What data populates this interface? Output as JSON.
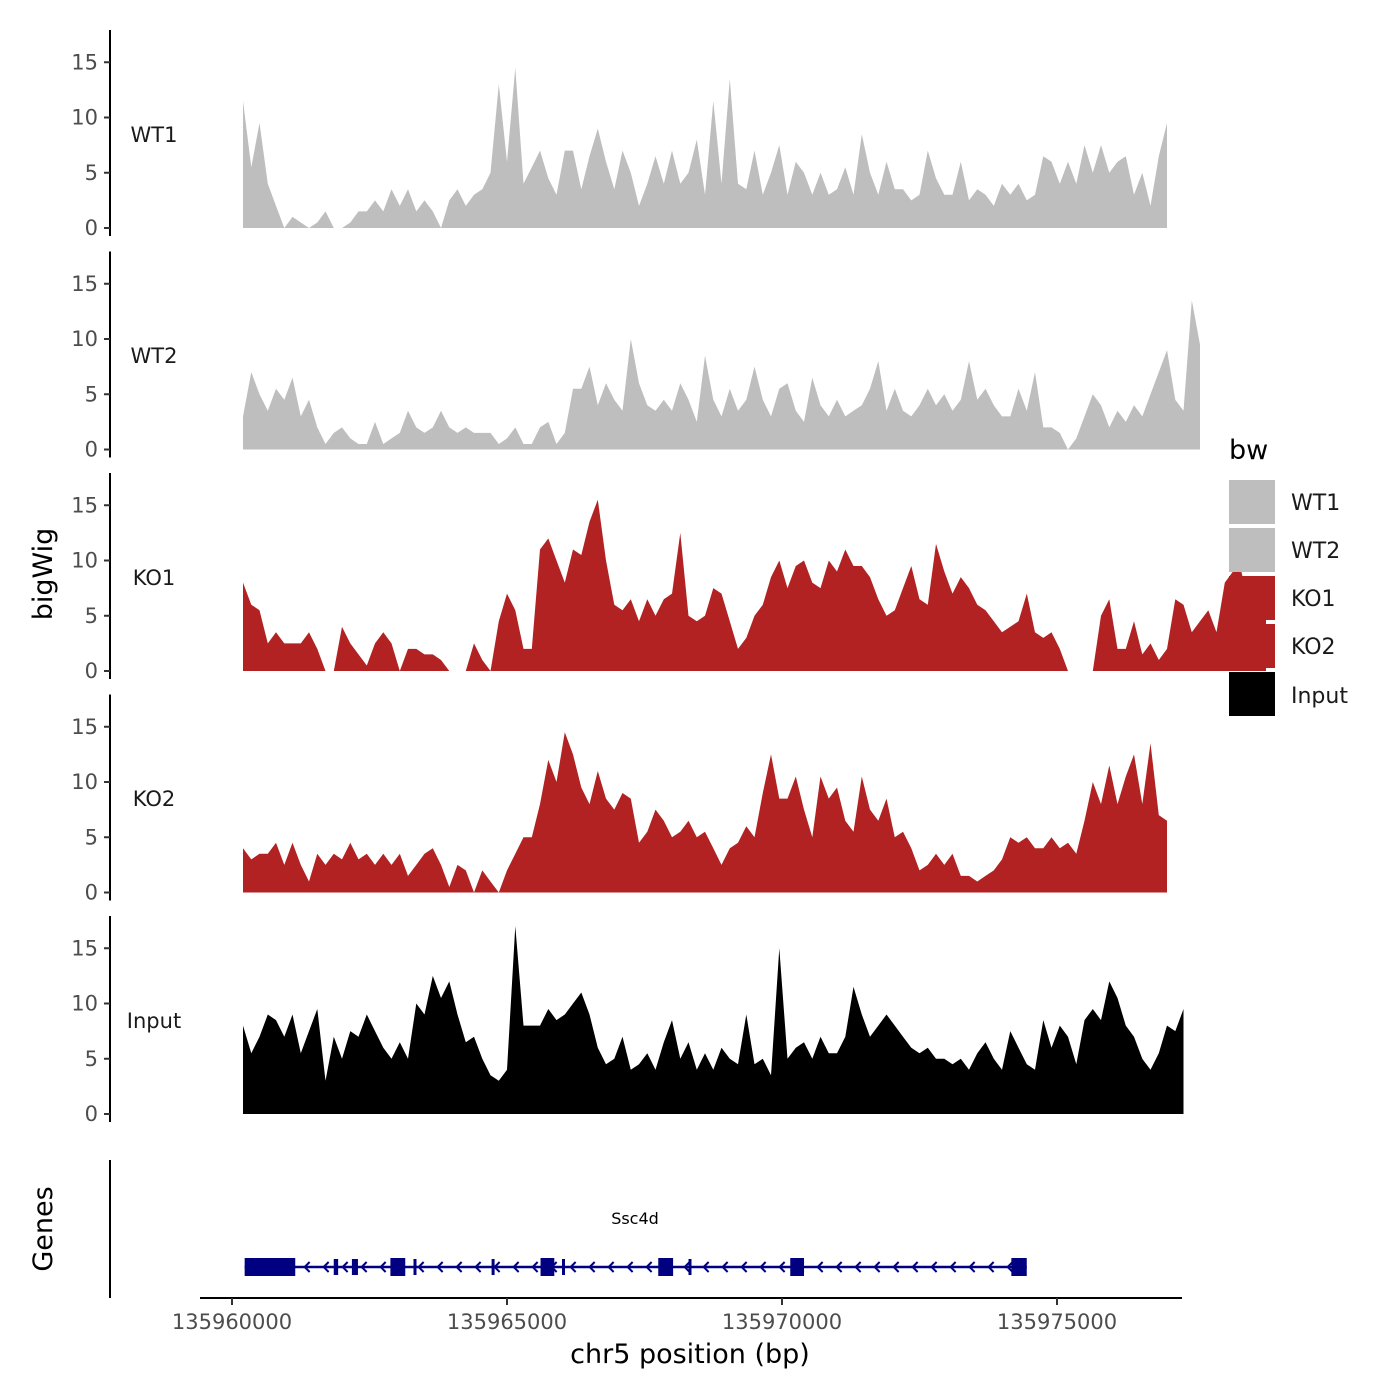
{
  "chart_data": {
    "type": "area",
    "title": "",
    "ylabel": "bigWig",
    "xlabel": "chr5 position (bp)",
    "xlim": [
      135959350,
      135977650
    ],
    "ylim": [
      0,
      18
    ],
    "x_ticks": [
      135960000,
      135965000,
      135970000,
      135975000
    ],
    "x_tick_labels": [
      "135960000",
      "135965000",
      "135970000",
      "135975000"
    ],
    "y_ticks": [
      0,
      5,
      10,
      15
    ],
    "y_tick_labels": [
      "0",
      "5",
      "10",
      "15"
    ],
    "x_start": 135960200,
    "x_step": 150,
    "series": [
      {
        "name": "WT1",
        "color": "#bebebe",
        "values": [
          11.5,
          5.5,
          9.5,
          4.0,
          2.0,
          0.0,
          1.0,
          0.5,
          0.0,
          0.5,
          1.5,
          0.0,
          0.0,
          0.5,
          1.5,
          1.5,
          2.5,
          1.5,
          3.5,
          2.0,
          3.5,
          1.5,
          2.5,
          1.5,
          0.0,
          2.5,
          3.5,
          2.0,
          3.0,
          3.5,
          5.0,
          13.0,
          6.0,
          14.5,
          4.0,
          5.5,
          7.0,
          4.5,
          3.0,
          7.0,
          7.0,
          3.5,
          6.5,
          9.0,
          6.0,
          3.5,
          7.0,
          5.0,
          2.0,
          4.0,
          6.5,
          4.0,
          7.0,
          4.0,
          5.0,
          8.0,
          3.0,
          11.5,
          4.0,
          13.5,
          4.0,
          3.5,
          7.0,
          3.0,
          5.0,
          7.5,
          3.0,
          6.0,
          5.0,
          3.0,
          5.0,
          3.0,
          3.5,
          5.5,
          3.0,
          8.5,
          5.0,
          3.0,
          6.0,
          3.5,
          3.5,
          2.5,
          3.0,
          7.0,
          4.5,
          3.0,
          3.0,
          6.0,
          2.5,
          3.5,
          3.0,
          2.0,
          4.0,
          3.0,
          4.0,
          2.5,
          3.0,
          6.5,
          6.0,
          4.0,
          6.0,
          4.0,
          7.5,
          5.0,
          7.5,
          5.0,
          6.0,
          6.5,
          3.0,
          5.0,
          2.0,
          6.5,
          9.5
        ]
      },
      {
        "name": "WT2",
        "color": "#bebebe",
        "values": [
          3.0,
          7.0,
          5.0,
          3.5,
          5.5,
          4.5,
          6.5,
          3.0,
          4.5,
          2.0,
          0.5,
          1.5,
          2.0,
          1.0,
          0.5,
          0.5,
          2.5,
          0.5,
          1.0,
          1.5,
          3.5,
          2.0,
          1.5,
          2.0,
          3.5,
          2.0,
          1.5,
          2.0,
          1.5,
          1.5,
          1.5,
          0.5,
          1.0,
          2.0,
          0.5,
          0.5,
          2.0,
          2.5,
          0.5,
          1.5,
          5.5,
          5.5,
          7.5,
          4.0,
          6.0,
          4.5,
          3.5,
          10.0,
          6.0,
          4.0,
          3.5,
          4.5,
          3.5,
          6.0,
          4.5,
          2.5,
          8.5,
          4.5,
          3.0,
          5.5,
          3.5,
          4.5,
          7.5,
          4.5,
          3.0,
          5.5,
          6.0,
          3.5,
          2.5,
          6.5,
          4.0,
          3.0,
          4.5,
          3.0,
          3.5,
          4.0,
          5.5,
          8.0,
          3.5,
          5.5,
          3.5,
          3.0,
          4.0,
          5.5,
          4.0,
          5.0,
          3.5,
          4.5,
          8.0,
          4.5,
          5.5,
          4.0,
          3.0,
          3.0,
          5.5,
          3.5,
          7.0,
          2.0,
          2.0,
          1.5,
          0.0,
          1.0,
          3.0,
          5.0,
          4.0,
          2.0,
          3.5,
          2.5,
          4.0,
          3.0,
          5.0,
          7.0,
          9.0,
          4.5,
          3.5,
          13.5,
          9.5
        ]
      },
      {
        "name": "KO1",
        "color": "#b22222",
        "values": [
          8.0,
          6.0,
          5.5,
          2.5,
          3.5,
          2.5,
          2.5,
          2.5,
          3.5,
          2.0,
          0.0,
          0.0,
          4.0,
          2.5,
          1.5,
          0.5,
          2.5,
          3.5,
          2.5,
          0.0,
          2.0,
          2.0,
          1.5,
          1.5,
          1.0,
          0.0,
          0.0,
          0.0,
          2.5,
          1.0,
          0.0,
          4.5,
          7.0,
          5.5,
          2.0,
          2.0,
          11.0,
          12.0,
          10.0,
          8.0,
          11.0,
          10.5,
          13.5,
          15.5,
          10.0,
          6.0,
          5.5,
          6.5,
          4.5,
          6.5,
          5.0,
          6.5,
          7.0,
          12.5,
          5.0,
          4.5,
          5.0,
          7.5,
          7.0,
          4.5,
          2.0,
          3.0,
          5.0,
          6.0,
          8.5,
          10.0,
          7.5,
          9.5,
          10.0,
          8.0,
          7.5,
          10.0,
          9.0,
          11.0,
          9.5,
          9.5,
          8.5,
          6.5,
          5.0,
          5.5,
          7.5,
          9.5,
          6.5,
          6.0,
          11.5,
          9.0,
          7.0,
          8.5,
          7.5,
          6.0,
          5.5,
          4.5,
          3.5,
          4.0,
          4.5,
          7.0,
          3.5,
          3.0,
          3.5,
          2.0,
          0.0,
          0.0,
          0.0,
          0.0,
          5.0,
          6.5,
          2.0,
          2.0,
          4.5,
          1.5,
          2.5,
          1.0,
          2.0,
          6.5,
          6.0,
          3.5,
          4.5,
          5.5,
          3.5,
          8.0,
          9.0,
          9.0,
          6.0,
          7.0,
          6.5
        ]
      },
      {
        "name": "KO2",
        "color": "#b22222",
        "values": [
          4.0,
          3.0,
          3.5,
          3.5,
          4.5,
          2.5,
          4.5,
          2.5,
          1.0,
          3.5,
          2.5,
          3.5,
          3.0,
          4.5,
          3.0,
          3.5,
          2.5,
          3.5,
          2.5,
          3.5,
          1.5,
          2.5,
          3.5,
          4.0,
          2.5,
          0.5,
          2.5,
          2.0,
          0.0,
          2.0,
          1.0,
          0.0,
          2.0,
          3.5,
          5.0,
          5.0,
          8.0,
          12.0,
          10.0,
          14.5,
          12.5,
          9.5,
          8.0,
          11.0,
          8.5,
          7.5,
          9.0,
          8.5,
          4.5,
          5.5,
          7.5,
          6.5,
          5.0,
          5.5,
          6.5,
          5.0,
          5.5,
          4.0,
          2.5,
          4.0,
          4.5,
          6.0,
          5.0,
          9.0,
          12.5,
          8.5,
          8.5,
          10.5,
          7.5,
          5.0,
          10.5,
          8.5,
          9.5,
          6.5,
          5.5,
          10.5,
          7.5,
          6.5,
          8.5,
          5.0,
          5.5,
          4.0,
          2.0,
          2.5,
          3.5,
          2.5,
          3.5,
          1.5,
          1.5,
          1.0,
          1.5,
          2.0,
          3.0,
          5.0,
          4.5,
          5.0,
          4.0,
          4.0,
          5.0,
          4.0,
          4.5,
          3.5,
          6.5,
          10.0,
          8.0,
          11.5,
          8.0,
          10.5,
          12.5,
          8.0,
          13.5,
          7.0,
          6.5
        ]
      },
      {
        "name": "Input",
        "color": "#000000",
        "values": [
          8.0,
          5.5,
          7.0,
          9.0,
          8.5,
          7.0,
          9.0,
          5.5,
          7.5,
          9.5,
          3.0,
          7.0,
          5.0,
          7.5,
          7.0,
          9.0,
          7.5,
          6.0,
          5.0,
          6.5,
          5.0,
          10.0,
          9.0,
          12.5,
          10.5,
          12.0,
          9.0,
          6.5,
          7.0,
          5.0,
          3.5,
          3.0,
          4.0,
          17.0,
          8.0,
          8.0,
          8.0,
          9.5,
          8.5,
          9.0,
          10.0,
          11.0,
          9.0,
          6.0,
          4.5,
          5.0,
          7.0,
          4.0,
          4.5,
          5.5,
          4.0,
          6.5,
          8.5,
          5.0,
          6.5,
          4.0,
          5.5,
          4.0,
          6.0,
          5.0,
          4.5,
          9.0,
          4.5,
          5.0,
          3.5,
          15.0,
          5.0,
          6.0,
          6.5,
          5.0,
          7.0,
          5.5,
          5.5,
          7.0,
          11.5,
          9.0,
          7.0,
          8.0,
          9.0,
          8.0,
          7.0,
          6.0,
          5.5,
          6.0,
          5.0,
          5.0,
          4.5,
          5.0,
          4.0,
          5.5,
          6.5,
          5.0,
          4.0,
          7.5,
          6.0,
          4.5,
          4.0,
          8.5,
          6.0,
          8.0,
          7.0,
          4.5,
          8.5,
          9.5,
          8.5,
          12.0,
          10.5,
          8.0,
          7.0,
          5.0,
          4.0,
          5.5,
          8.0,
          7.5,
          9.5
        ]
      }
    ],
    "legend": {
      "title": "bw",
      "position": "right",
      "entries": [
        {
          "label": "WT1",
          "color": "#bebebe"
        },
        {
          "label": "WT2",
          "color": "#bebebe"
        },
        {
          "label": "KO1",
          "color": "#b22222"
        },
        {
          "label": "KO2",
          "color": "#b22222"
        },
        {
          "label": "Input",
          "color": "#000000"
        }
      ]
    },
    "genes": {
      "track_label": "Genes",
      "color": "#000080",
      "items": [
        {
          "name": "Ssc4d",
          "start": 135960230,
          "end": 135974450,
          "strand": "-",
          "exons": [
            [
              135960230,
              135961150
            ],
            [
              135961850,
              135961930
            ],
            [
              135962180,
              135962290
            ],
            [
              135962880,
              135963150
            ],
            [
              135963300,
              135963350
            ],
            [
              135964720,
              135964770
            ],
            [
              135965610,
              135965860
            ],
            [
              135966000,
              135966050
            ],
            [
              135967750,
              135968020
            ],
            [
              135968300,
              135968340
            ],
            [
              135970150,
              135970400
            ],
            [
              135974170,
              135974450
            ]
          ]
        }
      ]
    }
  }
}
